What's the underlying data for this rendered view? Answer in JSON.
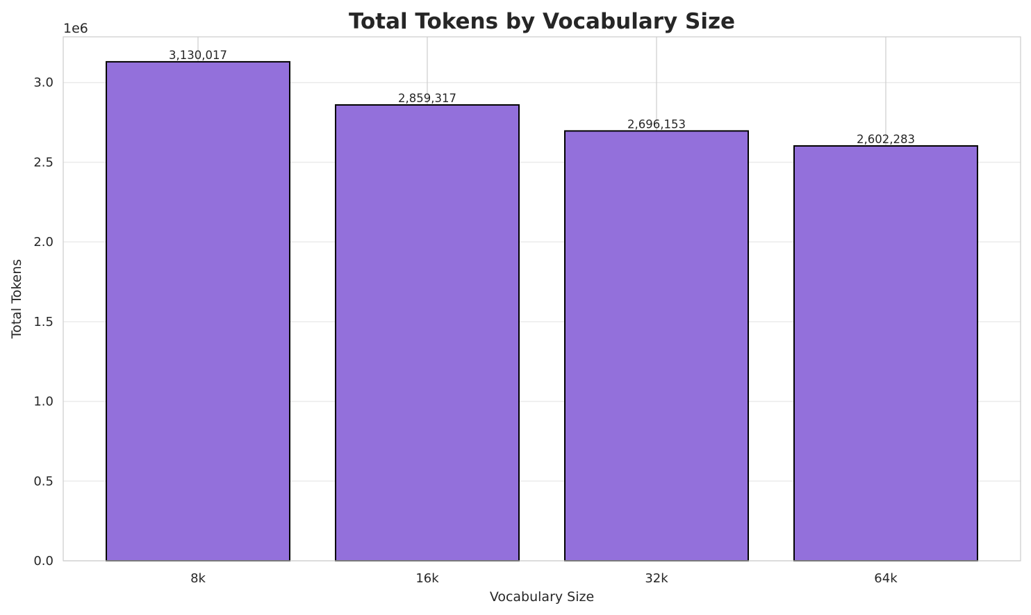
{
  "chart_data": {
    "type": "bar",
    "title": "Total Tokens by Vocabulary Size",
    "xlabel": "Vocabulary Size",
    "ylabel": "Total Tokens",
    "y_offset_label": "1e6",
    "categories": [
      "8k",
      "16k",
      "32k",
      "64k"
    ],
    "values": [
      3130017,
      2859317,
      2696153,
      2602283
    ],
    "data_labels": [
      "3,130,017",
      "2,859,317",
      "2,696,153",
      "2,602,283"
    ],
    "ylim": [
      0,
      3286518
    ],
    "yticks": [
      0,
      500000,
      1000000,
      1500000,
      2000000,
      2500000,
      3000000
    ],
    "ytick_labels": [
      "0.0",
      "0.5",
      "1.0",
      "1.5",
      "2.0",
      "2.5",
      "3.0"
    ],
    "grid": true,
    "colors": {
      "bar": "#9370DB",
      "bar_edge": "#000000",
      "grid_y": "#EBEBEB",
      "grid_x": "#D0D0D0",
      "spine": "#CCCCCC"
    }
  }
}
